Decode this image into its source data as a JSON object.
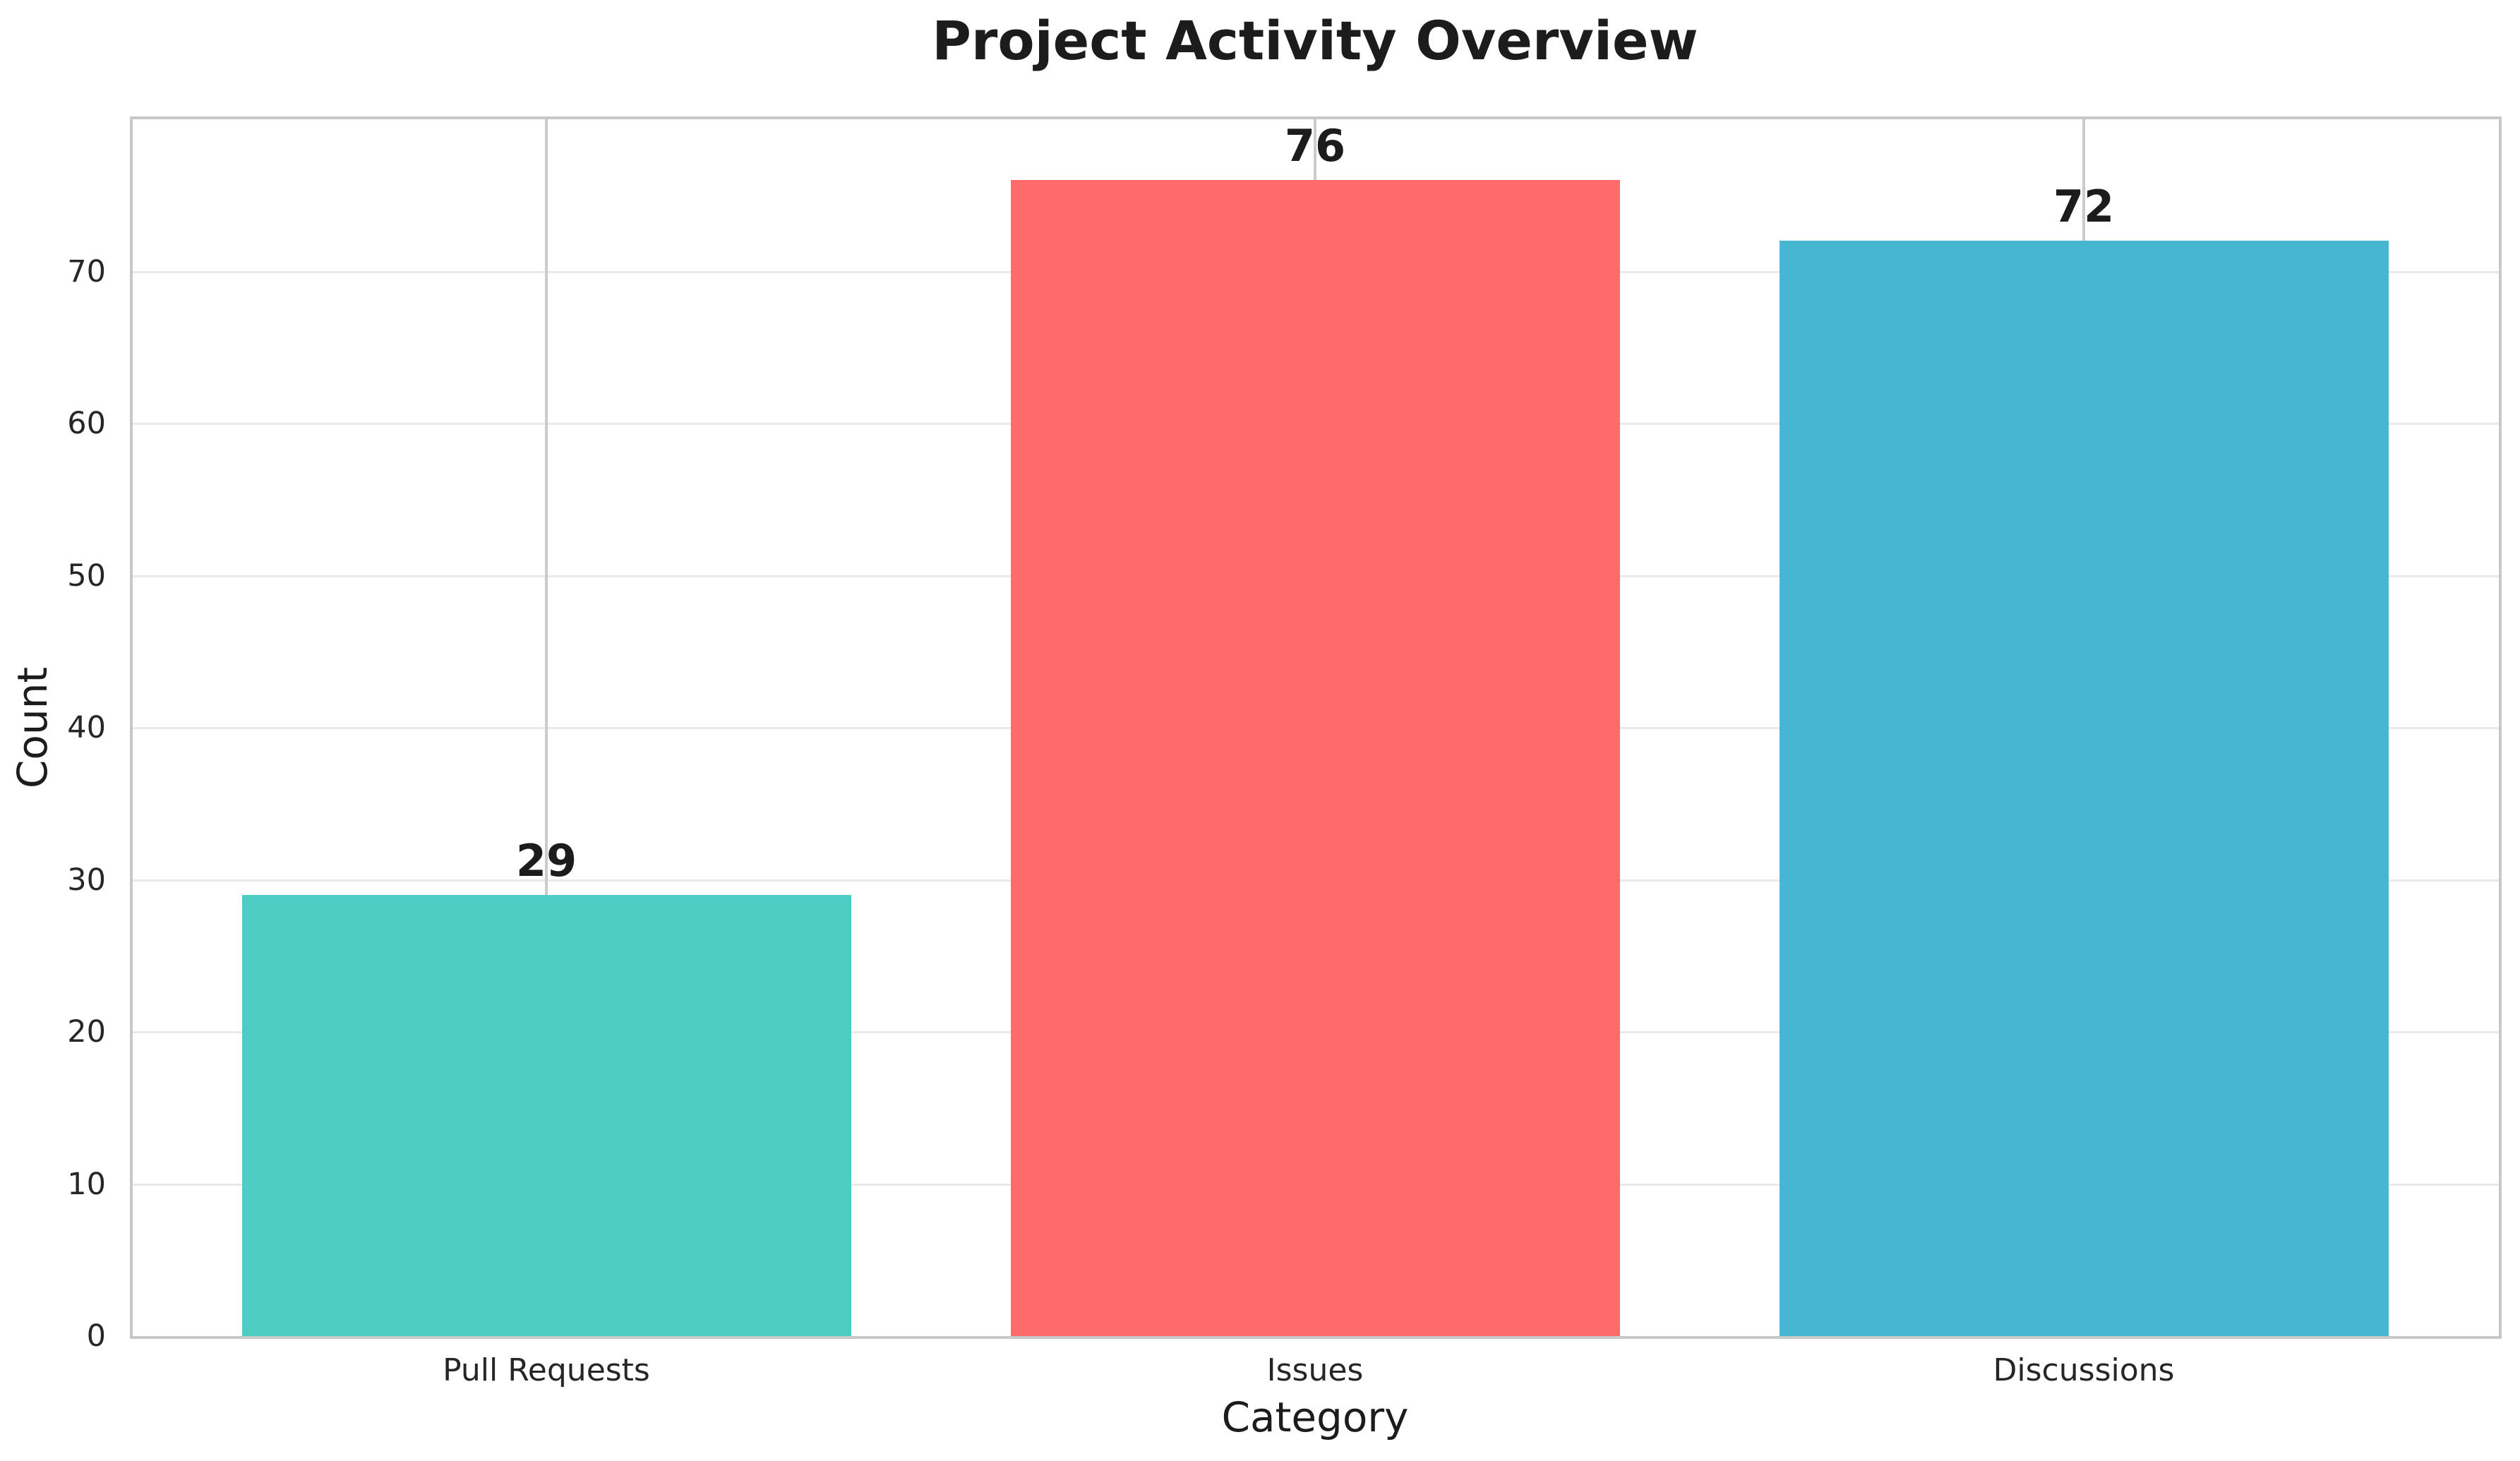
{
  "chart_data": {
    "type": "bar",
    "title": "Project Activity Overview",
    "xlabel": "Category",
    "ylabel": "Count",
    "categories": [
      "Pull Requests",
      "Issues",
      "Discussions"
    ],
    "values": [
      29,
      76,
      72
    ],
    "value_labels": [
      "29",
      "76",
      "72"
    ],
    "bar_colors": [
      "#4ECDC4",
      "#FF6B6B",
      "#45B7D1"
    ],
    "yticks": [
      0,
      10,
      20,
      30,
      40,
      50,
      60,
      70
    ],
    "ylim": [
      0,
      80
    ],
    "grid": "horizontal and vertical gridlines on",
    "legend_position": "none"
  },
  "style": {
    "background": "#ffffff",
    "text_color": "#1c1c1c",
    "tick_color": "#262626",
    "spine_color": "#c8c8c8",
    "hgrid_color": "#e9e9e9",
    "vgrid_color": "#cbcbcb"
  }
}
